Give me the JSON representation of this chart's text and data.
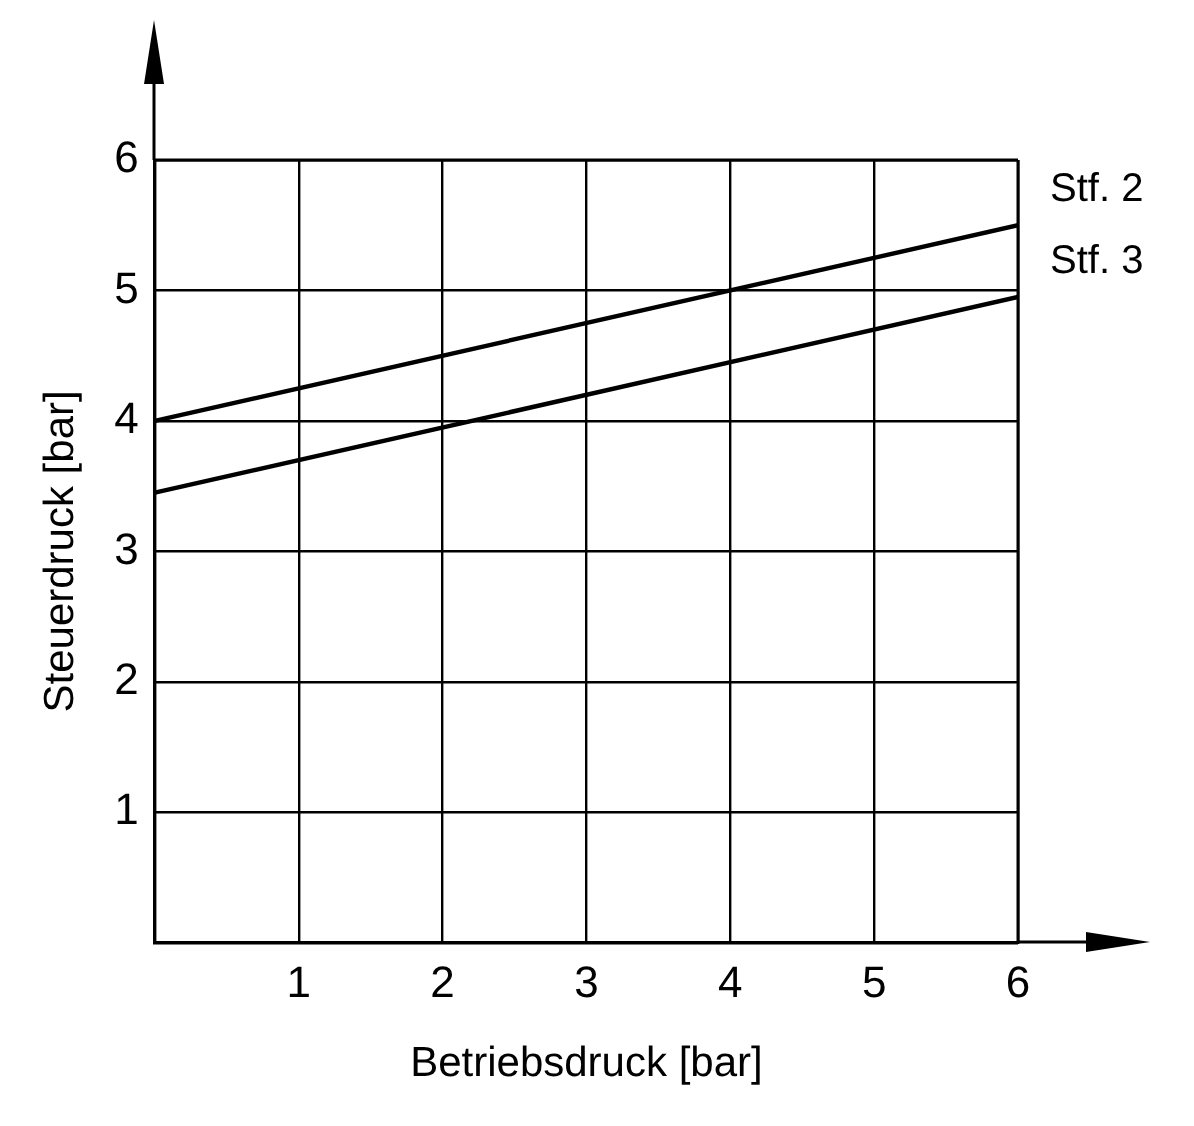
{
  "chart_data": {
    "type": "line",
    "xlabel": "Betriebsdruck [bar]",
    "ylabel": "Steuerdruck [bar]",
    "x": [
      0,
      6
    ],
    "series": [
      {
        "name": "Stf. 2",
        "color": "#000000",
        "values": [
          4,
          5.5
        ]
      },
      {
        "name": "Stf. 3",
        "color": "#000000",
        "values": [
          3.45,
          4.95
        ]
      }
    ],
    "xlim": [
      0,
      6
    ],
    "ylim": [
      0,
      6
    ],
    "xticks": [
      {
        "value": 0,
        "label": null
      },
      1,
      2,
      3,
      4,
      5,
      6
    ],
    "yticks": [
      {
        "value": 0,
        "label": null
      },
      1,
      2,
      3,
      4,
      5,
      6
    ],
    "grid": true,
    "legend": false,
    "marker": "none",
    "line_style": "solid"
  }
}
